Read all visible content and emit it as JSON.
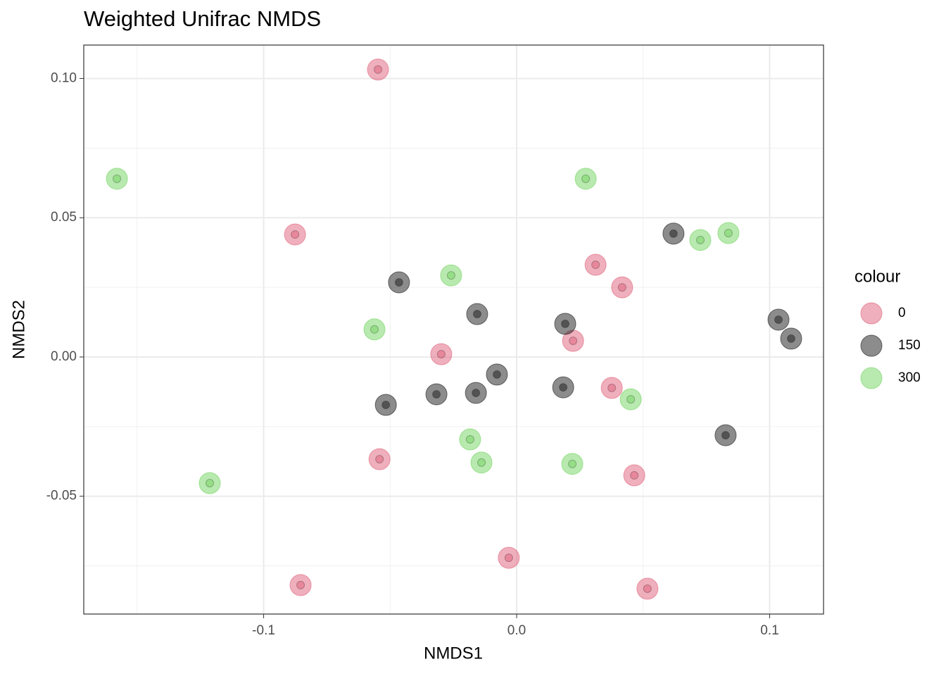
{
  "chart_data": {
    "type": "scatter",
    "title": "Weighted Unifrac NMDS",
    "x_label": "NMDS1",
    "y_label": "NMDS2",
    "legend_title": "colour",
    "legend_position": "right",
    "grid": true,
    "xlim": [
      -0.1711,
      0.1213
    ],
    "ylim": [
      -0.0923,
      0.112
    ],
    "xticks": [
      -0.1,
      {
        "value": 0,
        "label": "0.0"
      },
      0.1
    ],
    "yticks": [
      -0.05,
      {
        "value": 0,
        "label": "0.00"
      },
      0.05,
      {
        "value": 0.1,
        "label": "0.10"
      }
    ],
    "x_minor_ticks": [
      -0.15,
      -0.05,
      0.05
    ],
    "y_minor_ticks": [
      -0.075,
      -0.025,
      0.025,
      0.075
    ],
    "series": [
      {
        "name": "0",
        "color": "#e0607a",
        "x": [
          -0.0548,
          -0.0876,
          -0.0298,
          0.0312,
          0.0417,
          0.0223,
          0.0376,
          -0.0542,
          0.0465,
          -0.0031,
          -0.0854,
          0.0517
        ],
        "y": [
          0.1032,
          0.044,
          0.001,
          0.0331,
          0.025,
          0.0058,
          -0.0111,
          -0.0367,
          -0.0425,
          -0.0721,
          -0.0819,
          -0.0832
        ]
      },
      {
        "name": "150",
        "color": "#1a1a1a",
        "x": [
          -0.0465,
          -0.0156,
          0.062,
          0.0192,
          0.1035,
          0.1085,
          -0.0078,
          -0.0317,
          -0.0161,
          -0.0517,
          0.0184,
          0.0826
        ],
        "y": [
          0.0268,
          0.0154,
          0.0443,
          0.0119,
          0.0134,
          0.0066,
          -0.0063,
          -0.0134,
          -0.0129,
          -0.0172,
          -0.0109,
          -0.0281
        ]
      },
      {
        "name": "300",
        "color": "#72d35f",
        "x": [
          -0.158,
          0.0273,
          0.0726,
          0.0837,
          -0.0259,
          -0.0562,
          0.0451,
          -0.0184,
          -0.0139,
          0.022,
          -0.1213
        ],
        "y": [
          0.064,
          0.064,
          0.042,
          0.0445,
          0.0293,
          0.0099,
          -0.0152,
          -0.0296,
          -0.0379,
          -0.0384,
          -0.0453
        ]
      }
    ]
  }
}
